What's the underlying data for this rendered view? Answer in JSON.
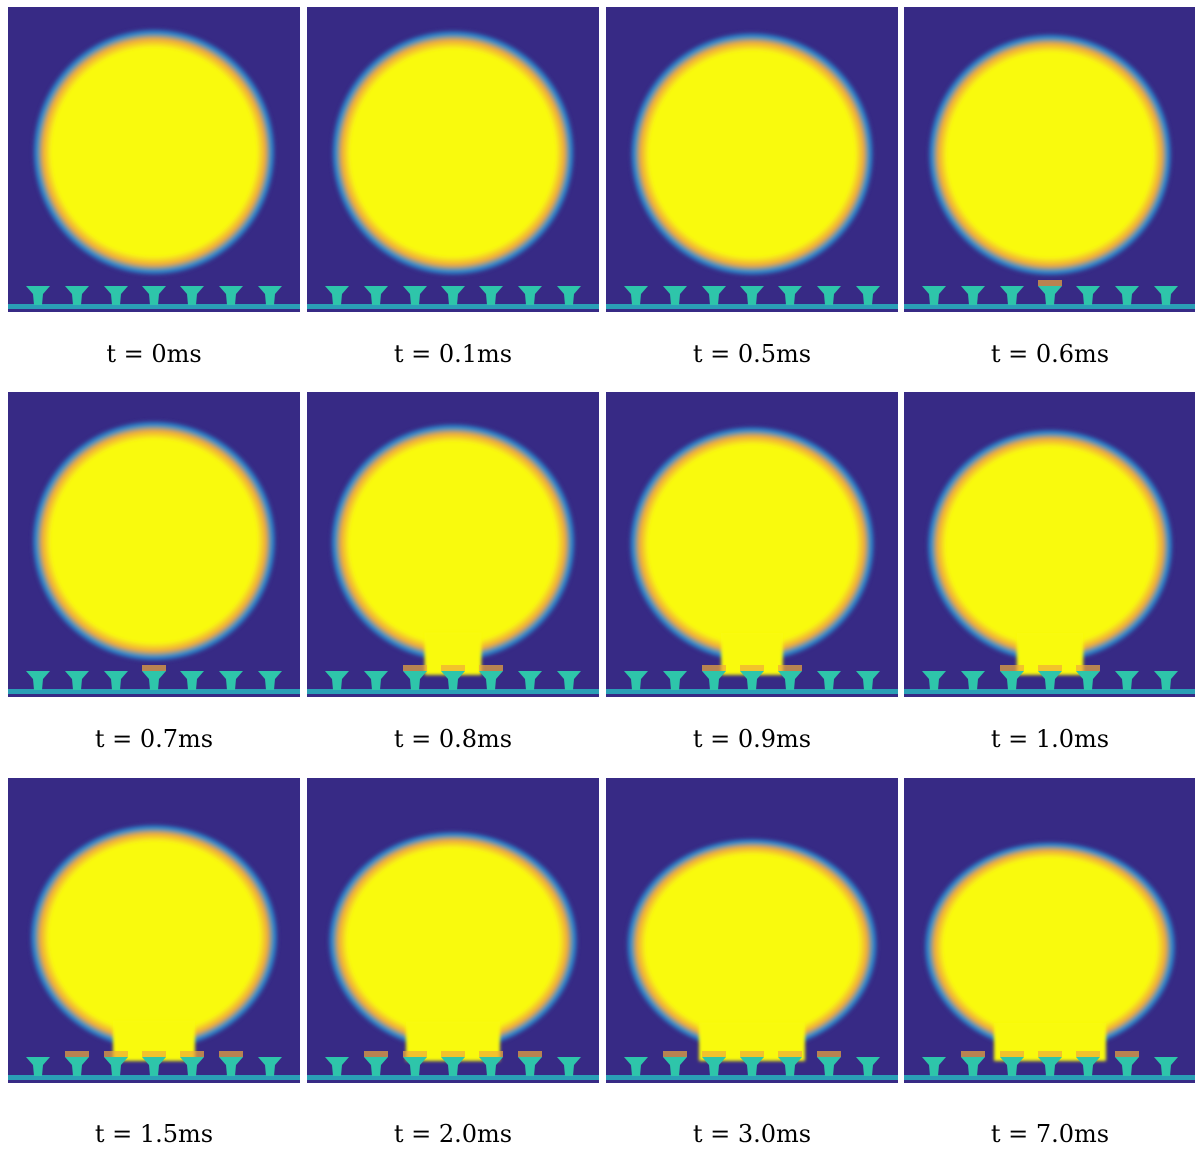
{
  "colors": {
    "background": "#372a85",
    "droplet_core": "#f9fa0f",
    "droplet_rim": "#f0a93a",
    "interface": "#2a8bd3",
    "substrate": "#2ec5aa",
    "substrate_base": "#2a9fb6"
  },
  "frames": [
    {
      "label": "t = 0ms",
      "time_ms": 0,
      "contact_pillars": 0,
      "deformation": 0.0
    },
    {
      "label": "t = 0.1ms",
      "time_ms": 0.1,
      "contact_pillars": 0,
      "deformation": 0.02
    },
    {
      "label": "t = 0.5ms",
      "time_ms": 0.5,
      "contact_pillars": 0,
      "deformation": 0.05
    },
    {
      "label": "t = 0.6ms",
      "time_ms": 0.6,
      "contact_pillars": 1,
      "deformation": 0.07
    },
    {
      "label": "t = 0.7ms",
      "time_ms": 0.7,
      "contact_pillars": 1,
      "deformation": 0.1
    },
    {
      "label": "t = 0.8ms",
      "time_ms": 0.8,
      "contact_pillars": 3,
      "deformation": 0.14
    },
    {
      "label": "t = 0.9ms",
      "time_ms": 0.9,
      "contact_pillars": 3,
      "deformation": 0.18
    },
    {
      "label": "t = 1.0ms",
      "time_ms": 1.0,
      "contact_pillars": 3,
      "deformation": 0.22
    },
    {
      "label": "t = 1.5ms",
      "time_ms": 1.5,
      "contact_pillars": 5,
      "deformation": 0.35
    },
    {
      "label": "t = 2.0ms",
      "time_ms": 2.0,
      "contact_pillars": 5,
      "deformation": 0.45
    },
    {
      "label": "t = 3.0ms",
      "time_ms": 3.0,
      "contact_pillars": 5,
      "deformation": 0.55
    },
    {
      "label": "t = 7.0ms",
      "time_ms": 7.0,
      "contact_pillars": 5,
      "deformation": 0.6
    }
  ]
}
